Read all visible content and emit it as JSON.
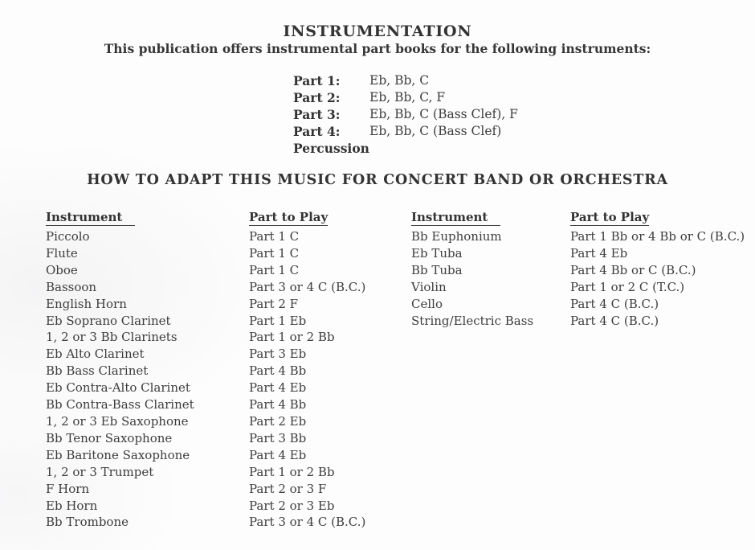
{
  "page": {
    "title": "INSTRUMENTATION",
    "subtitle": "This publication offers instrumental part books for the following instruments:",
    "section_heading": "HOW TO ADAPT THIS MUSIC FOR CONCERT BAND OR ORCHESTRA"
  },
  "part_books": [
    {
      "label": "Part 1:",
      "value": "Eb, Bb, C"
    },
    {
      "label": "Part 2:",
      "value": "Eb, Bb, C, F"
    },
    {
      "label": "Part 3:",
      "value": "Eb, Bb, C (Bass Clef), F"
    },
    {
      "label": "Part 4:",
      "value": "Eb, Bb, C (Bass Clef)"
    },
    {
      "label": "Percussion",
      "value": ""
    }
  ],
  "tables": {
    "headers": {
      "instrument": "Instrument",
      "part": "Part to Play"
    },
    "left": [
      {
        "instrument": "Piccolo",
        "part": "Part 1 C"
      },
      {
        "instrument": "Flute",
        "part": "Part 1 C"
      },
      {
        "instrument": "Oboe",
        "part": "Part 1 C"
      },
      {
        "instrument": "Bassoon",
        "part": "Part 3 or 4 C (B.C.)"
      },
      {
        "instrument": "English Horn",
        "part": "Part 2 F"
      },
      {
        "instrument": "Eb Soprano Clarinet",
        "part": "Part 1 Eb"
      },
      {
        "instrument": "1, 2 or 3 Bb Clarinets",
        "part": "Part 1 or 2 Bb"
      },
      {
        "instrument": "Eb Alto Clarinet",
        "part": "Part 3 Eb"
      },
      {
        "instrument": "Bb Bass Clarinet",
        "part": "Part 4 Bb"
      },
      {
        "instrument": "Eb Contra-Alto Clarinet",
        "part": "Part 4 Eb"
      },
      {
        "instrument": "Bb Contra-Bass Clarinet",
        "part": "Part 4 Bb"
      },
      {
        "instrument": "1, 2 or 3 Eb Saxophone",
        "part": "Part 2 Eb"
      },
      {
        "instrument": "Bb Tenor Saxophone",
        "part": "Part 3 Bb"
      },
      {
        "instrument": "Eb Baritone Saxophone",
        "part": "Part 4 Eb"
      },
      {
        "instrument": "1, 2 or 3 Trumpet",
        "part": "Part 1 or 2 Bb"
      },
      {
        "instrument": "F Horn",
        "part": "Part 2 or 3 F"
      },
      {
        "instrument": "Eb Horn",
        "part": "Part 2 or 3 Eb"
      },
      {
        "instrument": "Bb Trombone",
        "part": "Part 3 or 4 C (B.C.)"
      }
    ],
    "right": [
      {
        "instrument": "Bb Euphonium",
        "part": "Part 1 Bb or 4 Bb or C (B.C.)"
      },
      {
        "instrument": "Eb Tuba",
        "part": "Part 4 Eb"
      },
      {
        "instrument": "Bb Tuba",
        "part": "Part 4 Bb or C (B.C.)"
      },
      {
        "instrument": "Violin",
        "part": "Part 1 or 2 C (T.C.)"
      },
      {
        "instrument": "Cello",
        "part": "Part 4 C (B.C.)"
      },
      {
        "instrument": "String/Electric Bass",
        "part": "Part 4 C (B.C.)"
      }
    ]
  },
  "colors": {
    "text": "#3a3a3a",
    "background": "#fdfdfd"
  }
}
